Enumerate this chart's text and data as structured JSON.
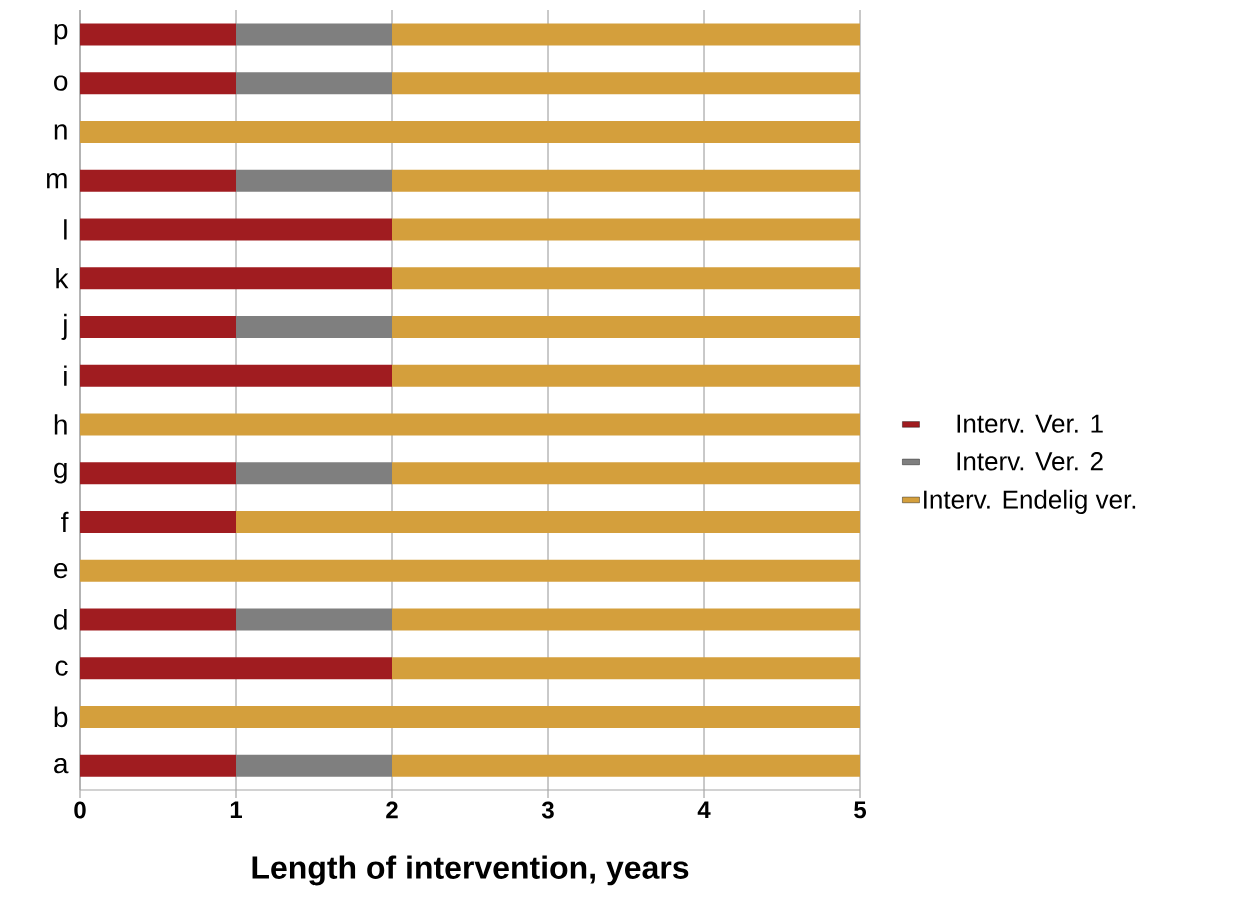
{
  "chart_data": {
    "type": "bar",
    "orientation": "horizontal",
    "stacked": true,
    "xlabel": "Length of intervention, years",
    "categories": [
      "p",
      "o",
      "n",
      "m",
      "l",
      "k",
      "j",
      "i",
      "h",
      "g",
      "f",
      "e",
      "d",
      "c",
      "b",
      "a"
    ],
    "series": [
      {
        "name": "Interv. Ver. 1",
        "color": "#a01c20",
        "values": [
          1,
          1,
          0,
          1,
          2,
          2,
          1,
          2,
          0,
          1,
          1,
          0,
          1,
          2,
          0,
          1
        ]
      },
      {
        "name": "Interv. Ver. 2",
        "color": "#7f7f7f",
        "values": [
          1,
          1,
          0,
          1,
          0,
          0,
          1,
          0,
          0,
          1,
          0,
          0,
          1,
          0,
          0,
          1
        ]
      },
      {
        "name": "Interv. Endelig ver.",
        "color": "#d49f3c",
        "values": [
          3,
          3,
          5,
          3,
          3,
          3,
          3,
          3,
          5,
          3,
          4,
          5,
          3,
          3,
          5,
          3
        ]
      }
    ],
    "xlim": [
      0,
      5
    ],
    "xticks": [
      0,
      1,
      2,
      3,
      4,
      5
    ],
    "grid": "x",
    "legend": "right"
  }
}
